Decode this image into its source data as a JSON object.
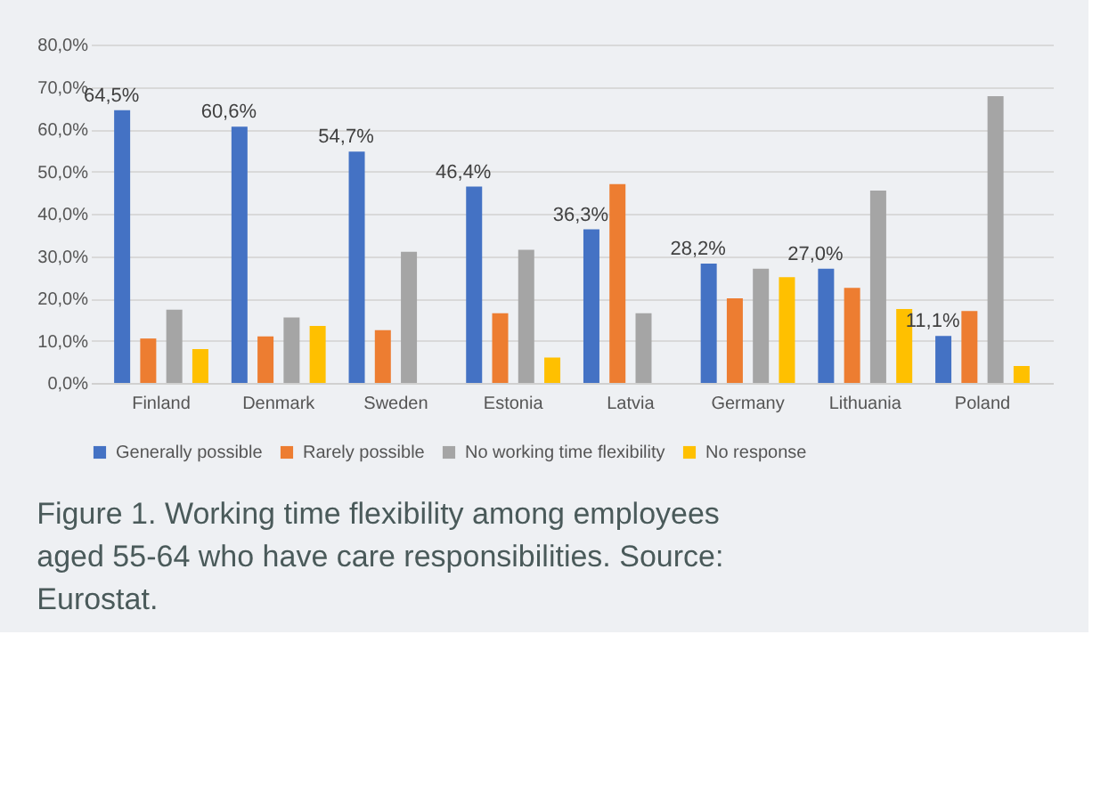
{
  "chart_data": {
    "type": "bar",
    "categories": [
      "Finland",
      "Denmark",
      "Sweden",
      "Estonia",
      "Latvia",
      "Germany",
      "Lithuania",
      "Poland"
    ],
    "series": [
      {
        "name": "Generally possible",
        "color": "#4472c4",
        "values": [
          64.5,
          60.6,
          54.7,
          46.4,
          36.3,
          28.2,
          27.0,
          11.1
        ],
        "value_labels": [
          "64,5%",
          "60,6%",
          "54,7%",
          "46,4%",
          "36,3%",
          "28,2%",
          "27,0%",
          "11,1%"
        ]
      },
      {
        "name": "Rarely possible",
        "color": "#ed7d31",
        "values": [
          10.5,
          11,
          12.5,
          16.5,
          47,
          20,
          22.5,
          17
        ]
      },
      {
        "name": "No working time flexibility",
        "color": "#a5a5a5",
        "values": [
          17.3,
          15.5,
          31,
          31.5,
          16.5,
          27,
          45.5,
          67.8
        ]
      },
      {
        "name": "No response",
        "color": "#ffc000",
        "values": [
          8,
          13.5,
          null,
          6,
          null,
          25,
          17.5,
          4
        ]
      }
    ],
    "ylim": [
      0,
      80
    ],
    "yticks": [
      {
        "value": 0,
        "label": "0,0%"
      },
      {
        "value": 10,
        "label": "10,0%"
      },
      {
        "value": 20,
        "label": "20,0%"
      },
      {
        "value": 30,
        "label": "30,0%"
      },
      {
        "value": 40,
        "label": "40,0%"
      },
      {
        "value": 50,
        "label": "50,0%"
      },
      {
        "value": 60,
        "label": "60,0%"
      },
      {
        "value": 70,
        "label": "70,0%"
      },
      {
        "value": 80,
        "label": "80,0%"
      }
    ],
    "grid": "y",
    "legend": "bottom",
    "annotations": [
      "Figure 1. Working time flexibility among employees aged 55-64 who have care responsibilities. Source: Eurostat."
    ]
  }
}
